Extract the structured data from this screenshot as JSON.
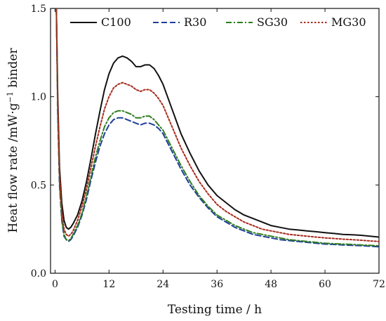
{
  "chart_data": {
    "type": "line",
    "title": "",
    "xlabel": "Testing time / h",
    "ylabel_prefix": "Heat flow rate /mW·g",
    "ylabel_sup": "−1",
    "ylabel_suffix": " binder",
    "xlim": [
      -1,
      72
    ],
    "ylim": [
      0.0,
      1.5
    ],
    "x_ticks": [
      0,
      12,
      24,
      36,
      48,
      60,
      72
    ],
    "y_ticks": [
      0.0,
      0.5,
      1.0,
      1.5
    ],
    "x_tick_labels": [
      "0",
      "12",
      "24",
      "36",
      "48",
      "60",
      "72"
    ],
    "y_tick_labels": [
      "0.0",
      "0.5",
      "1.0",
      "1.5"
    ],
    "grid": false,
    "legend_position": "top",
    "series": [
      {
        "name": "C100",
        "color": "#111111",
        "dash": "solid",
        "x": [
          0.0,
          0.3,
          0.6,
          1.0,
          1.5,
          2.0,
          2.5,
          3.0,
          3.5,
          4.0,
          5.0,
          6.0,
          7.0,
          8.0,
          9.0,
          10.0,
          11.0,
          12.0,
          13.0,
          14.0,
          15.0,
          16.0,
          17.0,
          18.0,
          19.0,
          20.0,
          21.0,
          22.0,
          23.0,
          24.0,
          25.0,
          26.0,
          27.0,
          28.0,
          30.0,
          32.0,
          34.0,
          36.0,
          38.0,
          40.0,
          42.0,
          44.0,
          46.0,
          48.0,
          50.0,
          52.0,
          54.0,
          56.0,
          58.0,
          60.0,
          62.0,
          64.0,
          66.0,
          68.0,
          70.0,
          72.0
        ],
        "values": [
          1.55,
          1.5,
          1.0,
          0.6,
          0.4,
          0.3,
          0.26,
          0.25,
          0.26,
          0.28,
          0.33,
          0.41,
          0.52,
          0.65,
          0.79,
          0.92,
          1.04,
          1.13,
          1.19,
          1.22,
          1.23,
          1.22,
          1.2,
          1.17,
          1.17,
          1.18,
          1.18,
          1.16,
          1.12,
          1.07,
          1.0,
          0.93,
          0.86,
          0.79,
          0.68,
          0.58,
          0.5,
          0.44,
          0.4,
          0.36,
          0.33,
          0.31,
          0.29,
          0.27,
          0.26,
          0.25,
          0.245,
          0.24,
          0.235,
          0.23,
          0.225,
          0.22,
          0.218,
          0.215,
          0.21,
          0.205
        ]
      },
      {
        "name": "R30",
        "color": "#1f3f9a",
        "dash": "dashed",
        "x": [
          0.0,
          0.3,
          0.6,
          1.0,
          1.5,
          2.0,
          2.5,
          3.0,
          3.5,
          4.0,
          5.0,
          6.0,
          7.0,
          8.0,
          9.0,
          10.0,
          11.0,
          12.0,
          13.0,
          14.0,
          15.0,
          16.0,
          17.0,
          18.0,
          19.0,
          20.0,
          21.0,
          22.0,
          23.0,
          24.0,
          25.0,
          26.0,
          27.0,
          28.0,
          30.0,
          32.0,
          34.0,
          36.0,
          38.0,
          40.0,
          42.0,
          44.0,
          46.0,
          48.0,
          50.0,
          52.0,
          54.0,
          56.0,
          58.0,
          60.0,
          62.0,
          64.0,
          66.0,
          68.0,
          70.0,
          72.0
        ],
        "values": [
          1.55,
          1.5,
          0.9,
          0.5,
          0.3,
          0.21,
          0.19,
          0.18,
          0.19,
          0.21,
          0.26,
          0.33,
          0.42,
          0.53,
          0.63,
          0.72,
          0.79,
          0.84,
          0.87,
          0.88,
          0.88,
          0.87,
          0.86,
          0.85,
          0.84,
          0.85,
          0.85,
          0.84,
          0.82,
          0.79,
          0.74,
          0.69,
          0.64,
          0.59,
          0.5,
          0.43,
          0.37,
          0.32,
          0.29,
          0.26,
          0.24,
          0.22,
          0.21,
          0.2,
          0.19,
          0.185,
          0.18,
          0.175,
          0.17,
          0.165,
          0.163,
          0.16,
          0.158,
          0.156,
          0.153,
          0.15
        ]
      },
      {
        "name": "SG30",
        "color": "#2e7d1e",
        "dash": "dashdot",
        "x": [
          0.0,
          0.3,
          0.6,
          1.0,
          1.5,
          2.0,
          2.5,
          3.0,
          3.5,
          4.0,
          5.0,
          6.0,
          7.0,
          8.0,
          9.0,
          10.0,
          11.0,
          12.0,
          13.0,
          14.0,
          15.0,
          16.0,
          17.0,
          18.0,
          19.0,
          20.0,
          21.0,
          22.0,
          23.0,
          24.0,
          25.0,
          26.0,
          27.0,
          28.0,
          30.0,
          32.0,
          34.0,
          36.0,
          38.0,
          40.0,
          42.0,
          44.0,
          46.0,
          48.0,
          50.0,
          52.0,
          54.0,
          56.0,
          58.0,
          60.0,
          62.0,
          64.0,
          66.0,
          68.0,
          70.0,
          72.0
        ],
        "values": [
          1.55,
          1.5,
          0.92,
          0.52,
          0.31,
          0.22,
          0.19,
          0.185,
          0.195,
          0.22,
          0.27,
          0.34,
          0.44,
          0.55,
          0.66,
          0.75,
          0.83,
          0.88,
          0.91,
          0.92,
          0.92,
          0.91,
          0.9,
          0.88,
          0.88,
          0.89,
          0.89,
          0.87,
          0.84,
          0.81,
          0.76,
          0.71,
          0.66,
          0.61,
          0.52,
          0.44,
          0.38,
          0.33,
          0.3,
          0.27,
          0.25,
          0.23,
          0.22,
          0.21,
          0.2,
          0.19,
          0.185,
          0.18,
          0.175,
          0.17,
          0.167,
          0.165,
          0.163,
          0.16,
          0.158,
          0.155
        ]
      },
      {
        "name": "MG30",
        "color": "#a82b1e",
        "dash": "dotted",
        "x": [
          0.0,
          0.3,
          0.6,
          1.0,
          1.5,
          2.0,
          2.5,
          3.0,
          3.5,
          4.0,
          5.0,
          6.0,
          7.0,
          8.0,
          9.0,
          10.0,
          11.0,
          12.0,
          13.0,
          14.0,
          15.0,
          16.0,
          17.0,
          18.0,
          19.0,
          20.0,
          21.0,
          22.0,
          23.0,
          24.0,
          25.0,
          26.0,
          27.0,
          28.0,
          30.0,
          32.0,
          34.0,
          36.0,
          38.0,
          40.0,
          42.0,
          44.0,
          46.0,
          48.0,
          50.0,
          52.0,
          54.0,
          56.0,
          58.0,
          60.0,
          62.0,
          64.0,
          66.0,
          68.0,
          70.0,
          72.0
        ],
        "values": [
          1.55,
          1.5,
          0.95,
          0.56,
          0.35,
          0.25,
          0.22,
          0.21,
          0.22,
          0.24,
          0.3,
          0.38,
          0.48,
          0.6,
          0.72,
          0.83,
          0.93,
          1.0,
          1.05,
          1.07,
          1.08,
          1.07,
          1.06,
          1.04,
          1.03,
          1.04,
          1.04,
          1.02,
          0.99,
          0.95,
          0.89,
          0.83,
          0.77,
          0.71,
          0.61,
          0.52,
          0.45,
          0.39,
          0.35,
          0.32,
          0.29,
          0.27,
          0.25,
          0.24,
          0.23,
          0.22,
          0.215,
          0.21,
          0.205,
          0.2,
          0.197,
          0.193,
          0.19,
          0.187,
          0.183,
          0.18
        ]
      }
    ]
  }
}
